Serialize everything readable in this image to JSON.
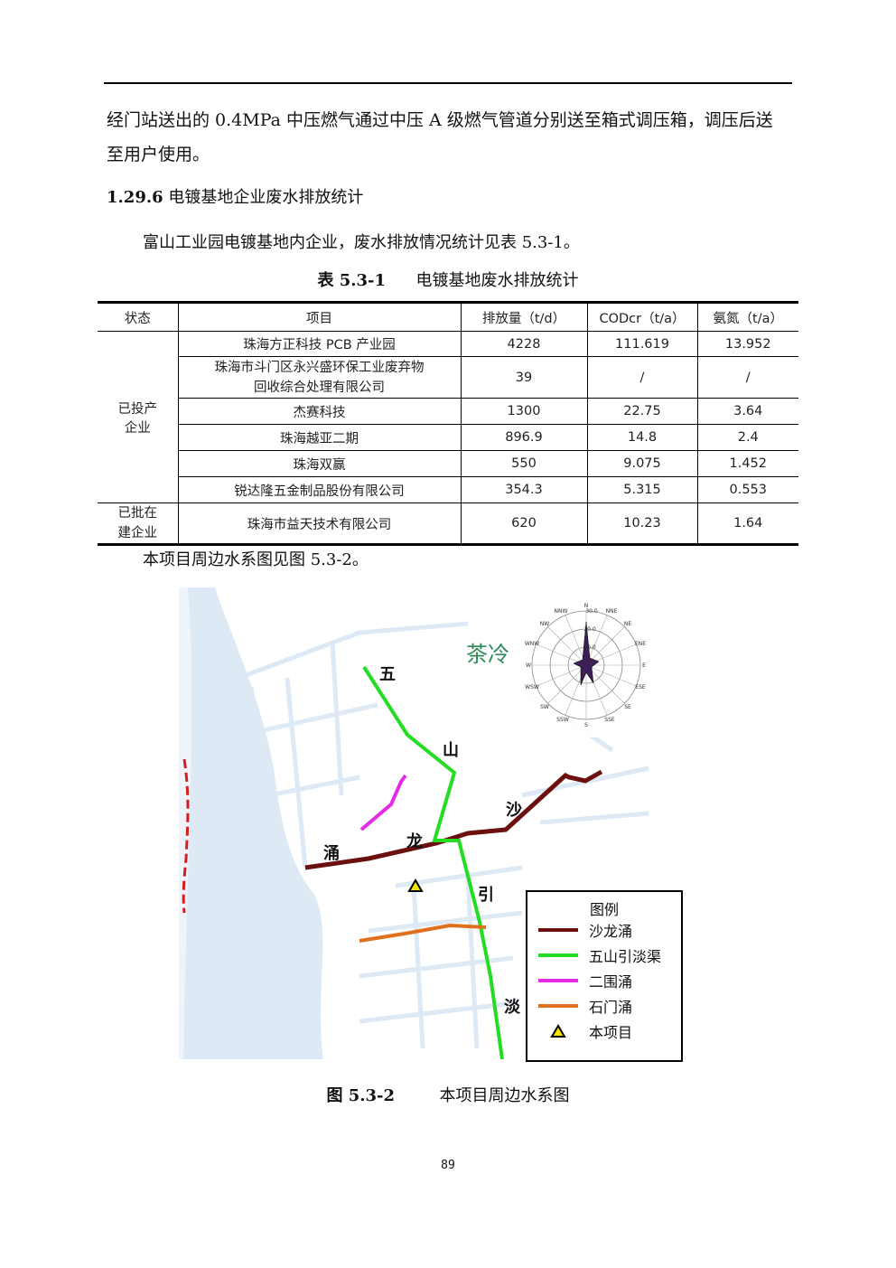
{
  "intro": {
    "line1": "经门站送出的 0.4MPa 中压燃气通过中压 A 级燃气管道分别送至箱式调压箱，调压后送",
    "line2": "至用户使用。"
  },
  "section": {
    "number": "1.29.6",
    "title": "电镀基地企业废水排放统计"
  },
  "body_text": "富山工业园电镀基地内企业，废水排放情况统计见表 5.3-1。",
  "table_caption": {
    "label": "表 5.3-1",
    "title": "电镀基地废水排放统计"
  },
  "table": {
    "headers": [
      "状态",
      "项目",
      "排放量（t/d）",
      "CODcr（t/a）",
      "氨氮（t/a）"
    ],
    "group1": "已投产企业",
    "group1_l1": "已投产",
    "group1_l2": "企业",
    "group2_l1": "已批在",
    "group2_l2": "建企业",
    "rows": [
      {
        "name": "珠海方正科技 PCB 产业园",
        "flow": "4228",
        "cod": "111.619",
        "nh": "13.952"
      },
      {
        "name_l1": "珠海市斗门区永兴盛环保工业废弃物",
        "name_l2": "回收综合处理有限公司",
        "flow": "39",
        "cod": "/",
        "nh": "/"
      },
      {
        "name": "杰赛科技",
        "flow": "1300",
        "cod": "22.75",
        "nh": "3.64"
      },
      {
        "name": "珠海越亚二期",
        "flow": "896.9",
        "cod": "14.8",
        "nh": "2.4"
      },
      {
        "name": "珠海双赢",
        "flow": "550",
        "cod": "9.075",
        "nh": "1.452"
      },
      {
        "name": "锐达隆五金制品股份有限公司",
        "flow": "354.3",
        "cod": "5.315",
        "nh": "0.553"
      },
      {
        "name": "珠海市益天技术有限公司",
        "flow": "620",
        "cod": "10.23",
        "nh": "1.64"
      }
    ]
  },
  "figure_ref_text": "本项目周边水系图见图 5.3-2。",
  "map": {
    "place_label": "茶冷",
    "river_chars": [
      "五",
      "山",
      "沙",
      "龙",
      "涌",
      "引",
      "淡"
    ],
    "compass": [
      "N",
      "NNE",
      "NE",
      "ENE",
      "E",
      "ESE",
      "SE",
      "SSE",
      "S",
      "SSW",
      "SW",
      "WSW",
      "W",
      "WNW",
      "NW",
      "NNW"
    ],
    "rose_values": [
      "30.0",
      "20.0",
      "10.0"
    ],
    "colors": {
      "shalong": "#6b0f0f",
      "wushan": "#22dd22",
      "erwei": "#e62be6",
      "shimen": "#e0701b",
      "project_marker": "#f5e500",
      "water": "#dde9f5"
    }
  },
  "legend": {
    "title": "图例",
    "items": [
      "沙龙涌",
      "五山引淡渠",
      "二围涌",
      "石门涌",
      "本项目"
    ]
  },
  "figure_caption": {
    "label": "图 5.3-2",
    "title": "本项目周边水系图"
  },
  "page_number": "89"
}
